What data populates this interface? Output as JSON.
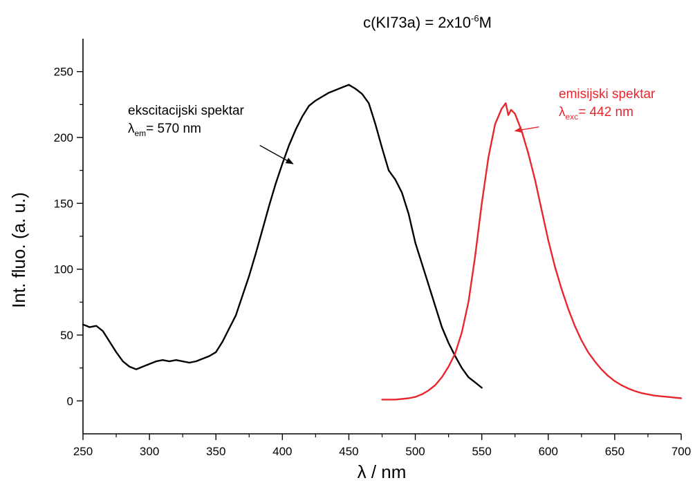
{
  "chart_data": {
    "type": "line",
    "title": {
      "prefix": "c(KI73a) = 2x10",
      "sup": "-6",
      "suffix": "M"
    },
    "xlabel": "λ / nm",
    "ylabel": "Int. fluo. (a. u.)",
    "xlim": [
      250,
      700
    ],
    "ylim": [
      -25,
      275
    ],
    "xticks": [
      250,
      300,
      350,
      400,
      450,
      500,
      550,
      600,
      650,
      700
    ],
    "yticks": [
      0,
      50,
      100,
      150,
      200,
      250
    ],
    "grid": false,
    "series": [
      {
        "color": "#000000",
        "x": [
          250,
          255,
          260,
          265,
          270,
          275,
          280,
          285,
          290,
          295,
          300,
          305,
          310,
          315,
          320,
          325,
          330,
          335,
          340,
          345,
          350,
          355,
          360,
          365,
          370,
          375,
          380,
          385,
          390,
          395,
          400,
          405,
          410,
          415,
          420,
          425,
          430,
          435,
          440,
          445,
          450,
          455,
          460,
          465,
          470,
          475,
          480,
          485,
          490,
          495,
          500,
          505,
          510,
          515,
          520,
          525,
          530,
          535,
          540,
          545,
          550
        ],
        "y": [
          58,
          56,
          57,
          53,
          45,
          37,
          30,
          26,
          24,
          26,
          28,
          30,
          31,
          30,
          31,
          30,
          29,
          30,
          32,
          34,
          37,
          45,
          55,
          65,
          80,
          95,
          112,
          130,
          148,
          165,
          180,
          194,
          206,
          216,
          224,
          228,
          231,
          234,
          236,
          238,
          240,
          237,
          233,
          226,
          210,
          192,
          175,
          168,
          158,
          142,
          120,
          104,
          88,
          72,
          56,
          44,
          34,
          25,
          18,
          14,
          10
        ]
      },
      {
        "color": "#e8262e",
        "x": [
          475,
          480,
          485,
          490,
          495,
          500,
          505,
          510,
          515,
          520,
          525,
          530,
          535,
          540,
          545,
          550,
          555,
          560,
          565,
          568,
          570,
          572,
          575,
          580,
          585,
          590,
          595,
          600,
          605,
          610,
          615,
          620,
          625,
          630,
          635,
          640,
          645,
          650,
          655,
          660,
          665,
          670,
          675,
          680,
          685,
          690,
          695,
          700
        ],
        "y": [
          1,
          1,
          1,
          1.5,
          2,
          3,
          5,
          8,
          12,
          18,
          26,
          36,
          52,
          75,
          110,
          150,
          185,
          210,
          222,
          226,
          217,
          221,
          218,
          205,
          188,
          168,
          145,
          122,
          102,
          85,
          70,
          57,
          46,
          37,
          30,
          24,
          19,
          15,
          12,
          9.5,
          7.5,
          6,
          5,
          4,
          3.5,
          3,
          2.5,
          2
        ]
      }
    ],
    "annotations": [
      {
        "line1": "ekscitacijski spektar",
        "sym": "λ",
        "sub": "em",
        "rest": "= 570 nm",
        "color": "#000000",
        "arrow_from": [
          383,
          194
        ],
        "arrow_to": [
          408,
          180
        ]
      },
      {
        "line1": "emisijski spektar",
        "sym": "λ",
        "sub": "exc",
        "rest": "= 442 nm",
        "color": "#e8262e",
        "arrow_from": [
          593,
          208
        ],
        "arrow_to": [
          575,
          205
        ]
      }
    ]
  }
}
